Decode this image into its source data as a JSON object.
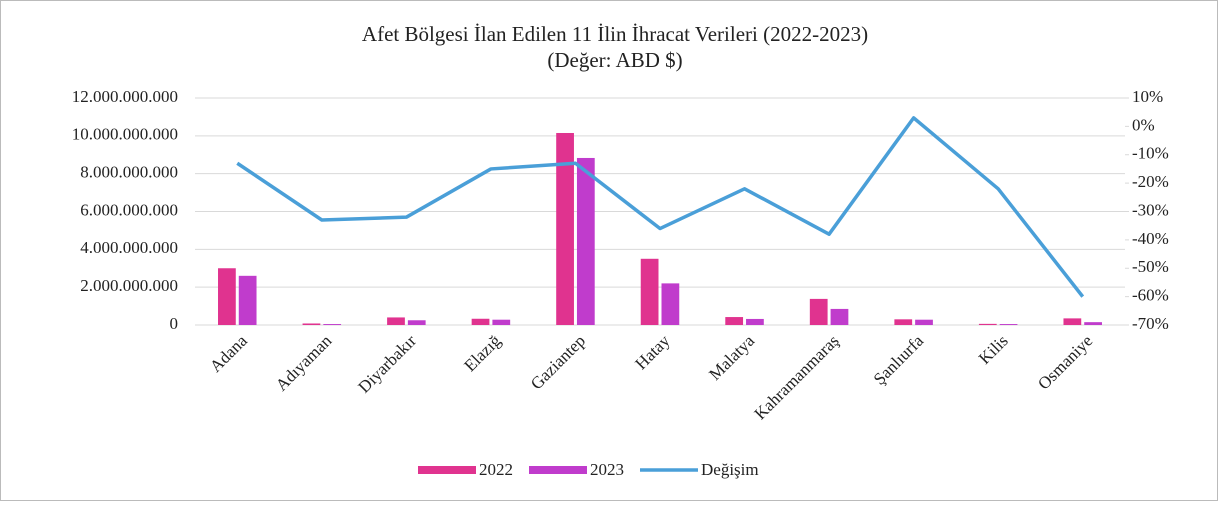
{
  "chart_data": {
    "type": "bar-line",
    "title": "Afet Bölgesi İlan Edilen 11 İlin İhracat Verileri (2022-2023)",
    "subtitle": "(Değer: ABD $)",
    "categories": [
      "Adana",
      "Adıyaman",
      "Diyarbakır",
      "Elazığ",
      "Gaziantep",
      "Hatay",
      "Malatya",
      "Kahramanmaraş",
      "Şanlıurfa",
      "Kilis",
      "Osmaniye"
    ],
    "series": [
      {
        "name": "2022",
        "type": "bar",
        "color": "#e0338f",
        "values": [
          3000000000,
          80000000,
          400000000,
          330000000,
          10150000000,
          3500000000,
          420000000,
          1380000000,
          300000000,
          60000000,
          350000000
        ]
      },
      {
        "name": "2023",
        "type": "bar",
        "color": "#c03ccc",
        "values": [
          2600000000,
          50000000,
          250000000,
          280000000,
          8830000000,
          2200000000,
          320000000,
          850000000,
          280000000,
          50000000,
          150000000
        ]
      },
      {
        "name": "Değişim",
        "type": "line",
        "axis": "y2",
        "color": "#4a9fd8",
        "values": [
          -13,
          -33,
          -32,
          -15,
          -13,
          -36,
          -22,
          -38,
          3,
          -22,
          -60
        ]
      }
    ],
    "ylim": [
      0,
      12000000000
    ],
    "yticks": [
      0,
      {
        "value": 2000000000,
        "label": "2.000.000.000"
      },
      {
        "value": 4000000000,
        "label": "4.000.000.000"
      },
      {
        "value": 6000000000,
        "label": "6.000.000.000"
      },
      {
        "value": 8000000000,
        "label": "8.000.000.000"
      },
      {
        "value": 10000000000,
        "label": "10.000.000.000"
      },
      {
        "value": 12000000000,
        "label": "12.000.000.000"
      }
    ],
    "y2lim": [
      -70,
      10
    ],
    "y2ticks": [
      {
        "value": -70,
        "label": "-70%"
      },
      {
        "value": -60,
        "label": "-60%"
      },
      {
        "value": -50,
        "label": "-50%"
      },
      {
        "value": -40,
        "label": "-40%"
      },
      {
        "value": -30,
        "label": "-30%"
      },
      {
        "value": -20,
        "label": "-20%"
      },
      {
        "value": -10,
        "label": "-10%"
      },
      {
        "value": 0,
        "label": "0%"
      },
      {
        "value": 10,
        "label": "10%"
      }
    ],
    "grid": true,
    "legend": "bottom"
  }
}
